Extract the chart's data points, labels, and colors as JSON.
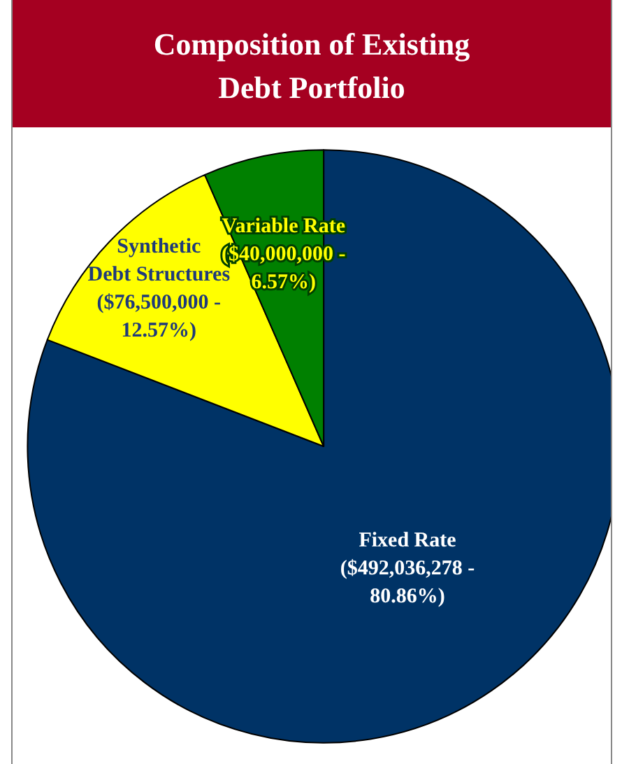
{
  "chart_data": {
    "type": "pie",
    "title": "Composition of Existing Debt Portfolio",
    "categories": [
      "Fixed Rate",
      "Synthetic Debt Structures",
      "Variable Rate"
    ],
    "values": [
      492036278,
      76500000,
      40000000
    ],
    "value_labels": [
      "($492,036,278 - 80.86%)",
      "($76,500,000 - 12.57%)",
      "($40,000,000 - 6.57%)"
    ],
    "colors": [
      "#003366",
      "#ffff00",
      "#008000"
    ],
    "legend": false
  }
}
